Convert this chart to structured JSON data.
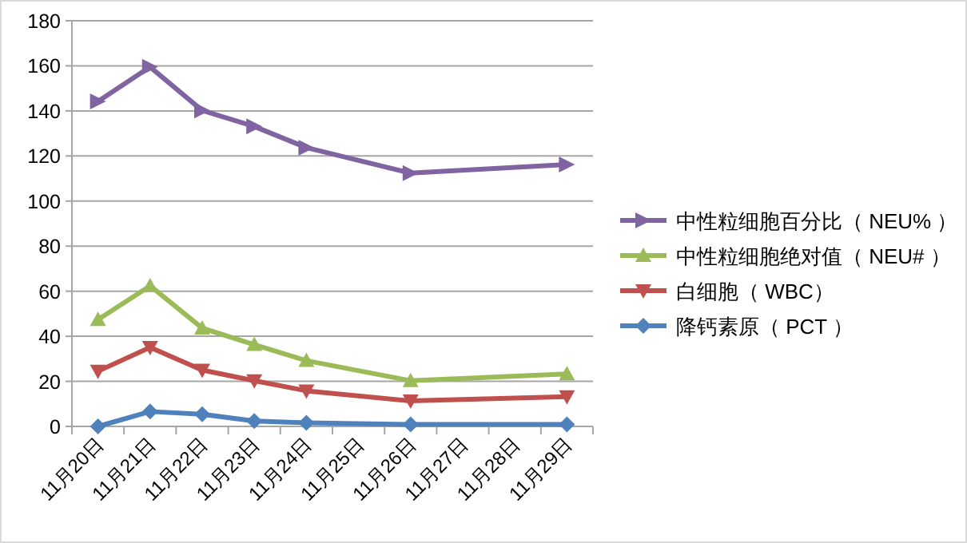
{
  "chart_data": {
    "type": "line",
    "categories": [
      "11月20日",
      "11月21日",
      "11月22日",
      "11月23日",
      "11月24日",
      "11月25日",
      "11月26日",
      "11月27日",
      "11月28日",
      "11月29日"
    ],
    "series": [
      {
        "name": "中性粒细胞百分比（ NEU% ）",
        "color": "#8064a2",
        "marker": "triangle-right",
        "values": [
          144.2,
          159.5,
          140.2,
          133.1,
          123.7,
          null,
          112.4,
          null,
          null,
          116.2
        ]
      },
      {
        "name": "中性粒细胞绝对值（ NEU#  ）",
        "color": "#9bbb59",
        "marker": "triangle",
        "values": [
          47.4,
          62.4,
          43.6,
          36.3,
          29.2,
          null,
          20.3,
          null,
          null,
          23.3
        ]
      },
      {
        "name": "白细胞（ WBC）",
        "color": "#c0504d",
        "marker": "triangle-down",
        "values": [
          24.5,
          35.1,
          25,
          20.3,
          15.8,
          null,
          11.3,
          null,
          null,
          13.2
        ]
      },
      {
        "name": "降钙素原（ PCT ）",
        "color": "#4f81bd",
        "marker": "diamond",
        "values": [
          0,
          6.6,
          5.4,
          2.4,
          1.6,
          null,
          0.9,
          null,
          null,
          0.9
        ]
      }
    ],
    "ylim": [
      0,
      180
    ],
    "yticks": [
      0,
      20,
      40,
      60,
      80,
      100,
      120,
      140,
      160,
      180
    ],
    "grid": "y",
    "legend": "right",
    "line_style": "solid"
  }
}
